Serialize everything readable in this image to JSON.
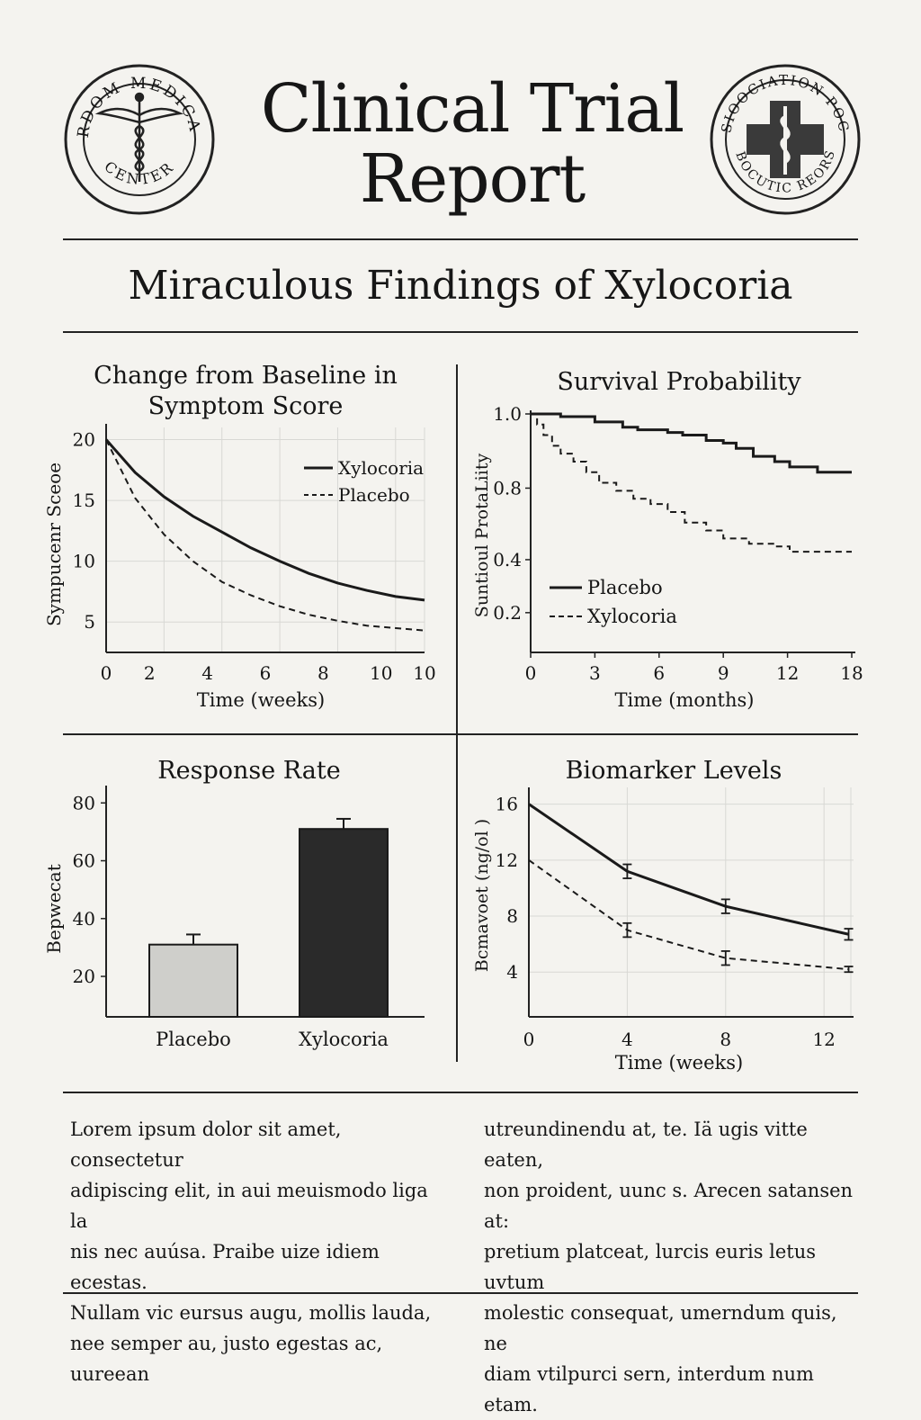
{
  "header": {
    "title_line1": "Clinical Trial",
    "title_line2": "Report",
    "subtitle": "Miraculous Findings of Xylocoria",
    "seal_left_text_top": "IRDOM MEDICAL",
    "seal_left_text_bottom": "CENTER",
    "seal_right_text_top": "SIOOCIATION POC",
    "seal_right_text_bottom": "RMBOCUTIC REORSOB"
  },
  "body_text": {
    "left": [
      "Lorem ipsum dolor sit amet, consectetur",
      "adipiscing elit, in aui meuismodo liga la",
      "nis nec auúsa. Praibe uize idiem ecestas.",
      "Nullam vic eursus augu, mollis lauda,",
      "nee semper au, justo egestas ac, uureean"
    ],
    "right": [
      "utreundinendu at, te. Iä ugis vitte eaten,",
      "non proident, uunc s. Arecen satansen at:",
      "pretium platceat, lurcis euris letus uvtum",
      "molestic consequat, umerndum quis, ne",
      "diam vtilpurci sern, interdum num etam."
    ]
  },
  "chart_data": [
    {
      "type": "line",
      "title": "Change from Baseline in Symptom Score",
      "xlabel": "Time (weeks)",
      "ylabel": "Sympucenr Sceoe",
      "xticks": [
        "0",
        "2",
        "4",
        "6",
        "8",
        "10",
        "10"
      ],
      "yticks": [
        "5",
        "10",
        "15",
        "20"
      ],
      "ylim": [
        2.5,
        21
      ],
      "grid": true,
      "legend": "top-right",
      "x": [
        0,
        1,
        2,
        3,
        4,
        5,
        6,
        7,
        8,
        9,
        10,
        11
      ],
      "series": [
        {
          "name": "Xylocoria",
          "style": "solid",
          "values": [
            20,
            17.3,
            15.3,
            13.7,
            12.4,
            11.1,
            10.0,
            9.0,
            8.2,
            7.6,
            7.1,
            6.8
          ]
        },
        {
          "name": "Placebo",
          "style": "dashed",
          "values": [
            20,
            15.2,
            12.2,
            10.0,
            8.3,
            7.2,
            6.3,
            5.6,
            5.1,
            4.7,
            4.5,
            4.3
          ]
        }
      ]
    },
    {
      "type": "line",
      "title": "Survival Probability",
      "xlabel": "Time (months)",
      "ylabel": "Suntioul ProtaLiity",
      "xticks": [
        "0",
        "3",
        "6",
        "9",
        "12",
        "18"
      ],
      "yticks": [
        "0.2",
        "0.4",
        "0.8",
        "1.0"
      ],
      "ylim": [
        0.1,
        1.0
      ],
      "grid": false,
      "legend": "bottom-left",
      "step": true,
      "series": [
        {
          "name": "Placebo",
          "style": "solid",
          "x": [
            0,
            1.4,
            3,
            4.3,
            5,
            6.4,
            7.1,
            8.2,
            9,
            9.6,
            10.4,
            11.4,
            12.1,
            13.4,
            15
          ],
          "values": [
            1.0,
            0.99,
            0.97,
            0.95,
            0.94,
            0.93,
            0.92,
            0.9,
            0.89,
            0.87,
            0.84,
            0.82,
            0.8,
            0.78,
            0.78
          ]
        },
        {
          "name": "Xylocoria",
          "style": "dashed",
          "x": [
            0,
            0.3,
            0.6,
            1.0,
            1.4,
            2.0,
            2.6,
            3.2,
            4.0,
            4.8,
            5.6,
            6.4,
            7.2,
            8.2,
            9,
            10.2,
            11.4,
            12.1,
            15
          ],
          "values": [
            1.0,
            0.96,
            0.92,
            0.88,
            0.85,
            0.82,
            0.78,
            0.74,
            0.71,
            0.68,
            0.66,
            0.63,
            0.59,
            0.56,
            0.53,
            0.51,
            0.5,
            0.48,
            0.48
          ]
        }
      ]
    },
    {
      "type": "bar",
      "title": "Response Rate",
      "ylabel": "Bepwecat",
      "categories": [
        "Placebo",
        "Xylocoria"
      ],
      "values": [
        31,
        71
      ],
      "errors": [
        3.5,
        3.5
      ],
      "colors": [
        "#cfcfcb",
        "#2a2a2a"
      ],
      "yticks": [
        "20",
        "40",
        "60",
        "80"
      ],
      "ylim": [
        6,
        86
      ],
      "grid": false
    },
    {
      "type": "line",
      "title": "Biomarker Levels",
      "xlabel": "Time (weeks)",
      "ylabel": "Bcmavoet (ng/ol )",
      "xticks": [
        "0",
        "4",
        "8",
        "12"
      ],
      "yticks": [
        "4",
        "8",
        "12",
        "16"
      ],
      "ylim": [
        0.8,
        17.2
      ],
      "grid": true,
      "x": [
        0,
        4,
        8,
        13
      ],
      "series": [
        {
          "style": "solid",
          "values": [
            16,
            11.2,
            8.7,
            6.7
          ],
          "errors": [
            0,
            0.5,
            0.5,
            0.4
          ]
        },
        {
          "style": "dashed",
          "values": [
            12,
            7,
            5,
            4.2
          ],
          "errors": [
            0,
            0.5,
            0.5,
            0.2
          ]
        }
      ]
    }
  ],
  "colors": {
    "background": "#f4f3ef",
    "ink": "#151515",
    "grid": "#d8d8d4"
  }
}
